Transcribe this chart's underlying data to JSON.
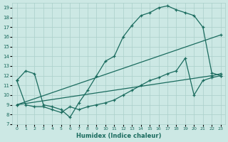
{
  "xlabel": "Humidex (Indice chaleur)",
  "bg_color": "#cce8e4",
  "grid_color": "#aacfca",
  "line_color": "#1a6b5e",
  "xlim": [
    -0.5,
    23.5
  ],
  "ylim": [
    7,
    19.5
  ],
  "yticks": [
    7,
    8,
    9,
    10,
    11,
    12,
    13,
    14,
    15,
    16,
    17,
    18,
    19
  ],
  "xticks": [
    0,
    1,
    2,
    3,
    4,
    5,
    6,
    7,
    8,
    9,
    10,
    11,
    12,
    13,
    14,
    15,
    16,
    17,
    18,
    19,
    20,
    21,
    22,
    23
  ],
  "series": [
    {
      "x": [
        0,
        1,
        2,
        3,
        4,
        5,
        6,
        7,
        8,
        9,
        10,
        11,
        12,
        13,
        14,
        15,
        16,
        17,
        18,
        19,
        20,
        21,
        22,
        23
      ],
      "y": [
        11.5,
        12.5,
        12.2,
        9.0,
        8.8,
        8.5,
        7.7,
        9.2,
        10.5,
        12.0,
        13.5,
        14.0,
        16.0,
        17.2,
        18.2,
        18.5,
        19.0,
        19.2,
        18.8,
        18.5,
        18.2,
        17.0,
        12.3,
        12.0
      ],
      "style": "-",
      "marker": "+"
    },
    {
      "x": [
        0,
        23
      ],
      "y": [
        9.0,
        16.2
      ],
      "style": "-",
      "marker": "+"
    },
    {
      "x": [
        0,
        22,
        23
      ],
      "y": [
        9.0,
        12.0,
        12.2
      ],
      "style": "-",
      "marker": "+"
    },
    {
      "x": [
        0,
        1,
        2,
        3,
        4,
        5,
        6,
        7,
        8,
        9,
        10,
        11,
        12,
        13,
        14,
        15,
        16,
        17,
        18,
        19,
        20,
        21,
        22,
        23
      ],
      "y": [
        11.5,
        9.0,
        8.8,
        8.8,
        8.5,
        8.2,
        8.8,
        8.5,
        8.8,
        9.0,
        9.2,
        9.5,
        10.0,
        10.5,
        11.0,
        11.5,
        11.8,
        12.2,
        12.5,
        13.8,
        10.0,
        11.5,
        11.8,
        12.0
      ],
      "style": "-",
      "marker": "+"
    }
  ]
}
